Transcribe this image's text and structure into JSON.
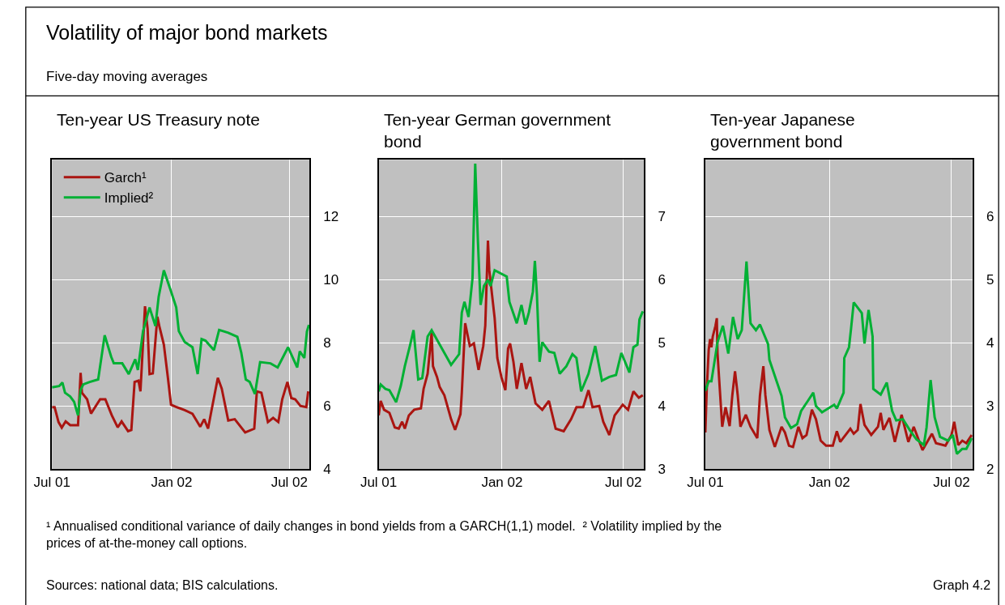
{
  "chart_data": [
    {
      "type": "other",
      "title": "Volatility of major bond markets",
      "subtitle": "Five-day moving averages"
    },
    {
      "type": "line",
      "title": "Ten-year US Treasury note",
      "xlim": [
        "2001-07-01",
        "2002-08-01"
      ],
      "xticks": [
        {
          "value": "2001-07-01",
          "label": "Jul 01"
        },
        {
          "value": "2002-01-01",
          "label": "Jan 02"
        },
        {
          "value": "2002-07-01",
          "label": "Jul 02"
        }
      ],
      "ylim": [
        4,
        13.8
      ],
      "yticks": [
        4,
        6,
        8,
        10,
        12
      ],
      "grid": true,
      "legend": "top left",
      "series": [
        {
          "name": "Garch¹",
          "color": "#aa1511",
          "x": [
            "2001-07-01",
            "2001-07-05",
            "2001-07-11",
            "2001-07-16",
            "2001-07-22",
            "2001-07-29",
            "2001-08-10",
            "2001-08-14",
            "2001-08-16",
            "2001-08-24",
            "2001-08-30",
            "2001-09-13",
            "2001-09-21",
            "2001-10-01",
            "2001-10-10",
            "2001-10-16",
            "2001-10-26",
            "2001-10-31",
            "2001-11-05",
            "2001-11-11",
            "2001-11-14",
            "2001-11-21",
            "2001-11-25",
            "2001-11-28",
            "2001-12-03",
            "2001-12-10",
            "2001-12-13",
            "2001-12-20",
            "2001-12-26",
            "2001-12-31",
            "2002-01-09",
            "2002-01-21",
            "2002-02-02",
            "2002-02-14",
            "2002-02-20",
            "2002-02-26",
            "2002-03-03",
            "2002-03-13",
            "2002-03-19",
            "2002-03-29",
            "2002-04-08",
            "2002-04-24",
            "2002-05-08",
            "2002-05-12",
            "2002-05-19",
            "2002-05-29",
            "2002-06-06",
            "2002-06-14",
            "2002-06-20",
            "2002-06-28",
            "2002-07-04",
            "2002-07-10",
            "2002-07-18",
            "2002-07-27",
            "2002-07-30"
          ],
          "values": [
            5.96,
            5.96,
            5.49,
            5.31,
            5.51,
            5.39,
            5.39,
            7.05,
            6.42,
            6.21,
            5.76,
            6.21,
            6.21,
            5.7,
            5.32,
            5.51,
            5.2,
            5.24,
            6.76,
            6.8,
            6.46,
            9.16,
            8.45,
            7.01,
            7.03,
            8.83,
            8.53,
            7.94,
            6.93,
            6.04,
            5.96,
            5.87,
            5.75,
            5.34,
            5.58,
            5.28,
            5.83,
            6.89,
            6.55,
            5.54,
            5.58,
            5.16,
            5.28,
            6.46,
            6.42,
            5.49,
            5.62,
            5.49,
            6.21,
            6.76,
            6.25,
            6.21,
            6.0,
            5.96,
            6.46
          ]
        },
        {
          "name": "Implied²",
          "color": "#00b034",
          "x": [
            "2001-07-01",
            "2001-07-12",
            "2001-07-17",
            "2001-07-21",
            "2001-07-29",
            "2001-08-04",
            "2001-08-10",
            "2001-08-14",
            "2001-08-18",
            "2001-08-28",
            "2001-09-10",
            "2001-09-20",
            "2001-09-30",
            "2001-10-04",
            "2001-10-17",
            "2001-10-27",
            "2001-11-06",
            "2001-11-10",
            "2001-11-18",
            "2001-11-28",
            "2001-12-07",
            "2001-12-12",
            "2001-12-20",
            "2001-12-31",
            "2002-01-08",
            "2002-01-12",
            "2002-01-21",
            "2002-02-02",
            "2002-02-10",
            "2002-02-16",
            "2002-02-22",
            "2002-03-07",
            "2002-03-15",
            "2002-03-29",
            "2002-04-12",
            "2002-04-18",
            "2002-04-25",
            "2002-05-01",
            "2002-05-09",
            "2002-05-17",
            "2002-06-02",
            "2002-06-13",
            "2002-06-29",
            "2002-07-13",
            "2002-07-17",
            "2002-07-24",
            "2002-07-28",
            "2002-07-31"
          ],
          "values": [
            6.59,
            6.63,
            6.74,
            6.42,
            6.3,
            6.13,
            5.7,
            6.51,
            6.68,
            6.76,
            6.84,
            8.24,
            7.56,
            7.35,
            7.35,
            7.01,
            7.48,
            7.14,
            8.37,
            9.12,
            8.53,
            9.46,
            10.3,
            9.63,
            9.12,
            8.37,
            8.03,
            7.86,
            7.01,
            8.12,
            8.07,
            7.77,
            8.41,
            8.32,
            8.19,
            7.69,
            6.84,
            6.76,
            6.38,
            7.39,
            7.35,
            7.22,
            7.86,
            7.22,
            7.73,
            7.52,
            8.36,
            8.57
          ]
        }
      ]
    },
    {
      "type": "line",
      "title": "Ten-year German government bond",
      "xlim": [
        "2001-07-01",
        "2002-08-01"
      ],
      "xticks": [
        {
          "value": "2001-07-01",
          "label": "Jul 01"
        },
        {
          "value": "2002-01-01",
          "label": "Jan 02"
        },
        {
          "value": "2002-07-01",
          "label": "Jul 02"
        }
      ],
      "ylim": [
        3,
        7.9
      ],
      "yticks": [
        3,
        4,
        5,
        6,
        7
      ],
      "grid": true,
      "series": [
        {
          "color": "#aa1511",
          "x": [
            "2001-07-01",
            "2001-07-04",
            "2001-07-09",
            "2001-07-17",
            "2001-07-25",
            "2001-07-31",
            "2001-08-05",
            "2001-08-09",
            "2001-08-15",
            "2001-08-23",
            "2001-09-02",
            "2001-09-06",
            "2001-09-12",
            "2001-09-18",
            "2001-09-20",
            "2001-09-26",
            "2001-09-30",
            "2001-10-07",
            "2001-10-17",
            "2001-10-23",
            "2001-10-31",
            "2001-11-02",
            "2001-11-07",
            "2001-11-14",
            "2001-11-20",
            "2001-11-27",
            "2001-12-04",
            "2001-12-07",
            "2001-12-11",
            "2001-12-13",
            "2001-12-21",
            "2001-12-25",
            "2001-12-31",
            "2002-01-06",
            "2002-01-10",
            "2002-01-13",
            "2002-01-18",
            "2002-01-23",
            "2002-01-30",
            "2002-02-06",
            "2002-02-12",
            "2002-02-20",
            "2002-03-02",
            "2002-03-12",
            "2002-03-22",
            "2002-04-03",
            "2002-04-14",
            "2002-04-22",
            "2002-05-02",
            "2002-05-10",
            "2002-05-16",
            "2002-05-26",
            "2002-06-01",
            "2002-06-10",
            "2002-06-18",
            "2002-06-30",
            "2002-07-08",
            "2002-07-16",
            "2002-07-24",
            "2002-07-30"
          ],
          "values": [
            3.85,
            4.08,
            3.94,
            3.89,
            3.66,
            3.64,
            3.75,
            3.64,
            3.85,
            3.94,
            3.96,
            4.27,
            4.51,
            5.16,
            4.63,
            4.46,
            4.3,
            4.17,
            3.79,
            3.62,
            3.87,
            4.21,
            5.31,
            4.95,
            4.99,
            4.57,
            4.95,
            5.27,
            6.62,
            6.15,
            5.39,
            4.76,
            4.46,
            4.25,
            4.91,
            4.99,
            4.7,
            4.27,
            4.68,
            4.27,
            4.46,
            4.04,
            3.94,
            4.08,
            3.64,
            3.6,
            3.79,
            3.98,
            3.98,
            4.25,
            3.98,
            4.0,
            3.75,
            3.54,
            3.85,
            4.02,
            3.94,
            4.23,
            4.13,
            4.17
          ]
        },
        {
          "color": "#00b034",
          "x": [
            "2001-07-01",
            "2001-07-04",
            "2001-07-11",
            "2001-07-17",
            "2001-07-27",
            "2001-08-03",
            "2001-08-09",
            "2001-08-17",
            "2001-08-22",
            "2001-08-29",
            "2001-09-04",
            "2001-09-12",
            "2001-09-18",
            "2001-09-26",
            "2001-10-17",
            "2001-10-29",
            "2001-11-02",
            "2001-11-06",
            "2001-11-12",
            "2001-11-18",
            "2001-11-22",
            "2001-11-26",
            "2001-11-30",
            "2001-12-05",
            "2001-12-11",
            "2001-12-15",
            "2001-12-21",
            "2002-01-08",
            "2002-01-12",
            "2002-01-23",
            "2002-01-30",
            "2002-02-05",
            "2002-02-10",
            "2002-02-16",
            "2002-02-19",
            "2002-02-22",
            "2002-02-26",
            "2002-03-02",
            "2002-03-12",
            "2002-03-20",
            "2002-03-28",
            "2002-04-07",
            "2002-04-16",
            "2002-04-22",
            "2002-04-29",
            "2002-05-10",
            "2002-05-20",
            "2002-05-30",
            "2002-06-10",
            "2002-06-20",
            "2002-06-28",
            "2002-07-10",
            "2002-07-16",
            "2002-07-22",
            "2002-07-25",
            "2002-07-30"
          ],
          "values": [
            4.23,
            4.34,
            4.27,
            4.25,
            4.06,
            4.32,
            4.63,
            4.97,
            5.2,
            4.42,
            4.44,
            5.1,
            5.2,
            5.05,
            4.65,
            4.82,
            5.48,
            5.65,
            5.41,
            6.03,
            7.84,
            6.62,
            5.6,
            5.9,
            6.0,
            5.9,
            6.15,
            6.05,
            5.65,
            5.31,
            5.6,
            5.29,
            5.48,
            5.81,
            6.3,
            5.77,
            4.7,
            5.01,
            4.86,
            4.84,
            4.51,
            4.63,
            4.82,
            4.76,
            4.23,
            4.51,
            4.95,
            4.4,
            4.46,
            4.49,
            4.84,
            4.53,
            4.93,
            4.97,
            5.37,
            5.5
          ]
        }
      ]
    },
    {
      "type": "line",
      "title": "Ten-year Japanese government bond",
      "xlim": [
        "2001-07-01",
        "2002-08-01"
      ],
      "xticks": [
        {
          "value": "2001-07-01",
          "label": "Jul 01"
        },
        {
          "value": "2002-01-01",
          "label": "Jan 02"
        },
        {
          "value": "2002-07-01",
          "label": "Jul 02"
        }
      ],
      "ylim": [
        2,
        6.9
      ],
      "yticks": [
        2,
        3,
        4,
        5,
        6
      ],
      "grid": true,
      "series": [
        {
          "color": "#aa1511",
          "x": [
            "2001-07-01",
            "2001-07-03",
            "2001-07-06",
            "2001-07-08",
            "2001-07-10",
            "2001-07-12",
            "2001-07-16",
            "2001-07-18",
            "2001-07-19",
            "2001-07-23",
            "2001-07-26",
            "2001-07-31",
            "2001-08-06",
            "2001-08-10",
            "2001-08-14",
            "2001-08-18",
            "2001-08-22",
            "2001-08-30",
            "2001-09-06",
            "2001-09-16",
            "2001-09-20",
            "2001-09-25",
            "2001-09-28",
            "2001-10-04",
            "2001-10-12",
            "2001-10-22",
            "2001-10-27",
            "2001-11-02",
            "2001-11-08",
            "2001-11-16",
            "2001-11-22",
            "2001-11-28",
            "2001-12-06",
            "2001-12-12",
            "2001-12-19",
            "2001-12-27",
            "2002-01-06",
            "2002-01-12",
            "2002-01-17",
            "2002-02-01",
            "2002-02-06",
            "2002-02-12",
            "2002-02-16",
            "2002-02-22",
            "2002-03-04",
            "2002-03-14",
            "2002-03-18",
            "2002-03-22",
            "2002-03-31",
            "2002-04-08",
            "2002-04-18",
            "2002-04-28",
            "2002-05-06",
            "2002-05-19",
            "2002-06-02",
            "2002-06-08",
            "2002-06-22",
            "2002-07-01",
            "2002-07-05",
            "2002-07-11",
            "2002-07-17",
            "2002-07-23",
            "2002-07-31"
          ],
          "values": [
            2.58,
            3.25,
            3.89,
            4.06,
            3.93,
            4.1,
            4.27,
            4.39,
            3.84,
            3.17,
            2.67,
            2.98,
            2.68,
            3.17,
            3.55,
            3.17,
            2.67,
            2.86,
            2.67,
            2.49,
            3.17,
            3.63,
            3.17,
            2.62,
            2.35,
            2.67,
            2.58,
            2.37,
            2.35,
            2.67,
            2.49,
            2.54,
            2.94,
            2.79,
            2.45,
            2.37,
            2.37,
            2.6,
            2.43,
            2.64,
            2.56,
            2.62,
            3.03,
            2.7,
            2.54,
            2.67,
            2.89,
            2.62,
            2.81,
            2.43,
            2.86,
            2.43,
            2.67,
            2.3,
            2.56,
            2.41,
            2.37,
            2.54,
            2.75,
            2.38,
            2.45,
            2.41,
            2.54
          ]
        },
        {
          "color": "#00b034",
          "x": [
            "2001-07-01",
            "2001-07-06",
            "2001-07-10",
            "2001-07-16",
            "2001-07-19",
            "2001-07-27",
            "2001-08-04",
            "2001-08-11",
            "2001-08-18",
            "2001-08-24",
            "2001-08-31",
            "2001-09-06",
            "2001-09-14",
            "2001-09-20",
            "2001-10-02",
            "2001-10-04",
            "2001-10-22",
            "2001-10-27",
            "2001-11-05",
            "2001-11-14",
            "2001-11-20",
            "2001-11-30",
            "2001-12-08",
            "2001-12-12",
            "2001-12-21",
            "2002-01-08",
            "2002-01-12",
            "2002-01-22",
            "2002-01-23",
            "2002-01-30",
            "2002-02-02",
            "2002-02-06",
            "2002-02-18",
            "2002-02-22",
            "2002-02-28",
            "2002-03-06",
            "2002-03-07",
            "2002-03-18",
            "2002-03-27",
            "2002-04-04",
            "2002-04-10",
            "2002-04-20",
            "2002-04-30",
            "2002-05-10",
            "2002-05-21",
            "2002-05-25",
            "2002-05-31",
            "2002-06-06",
            "2002-06-14",
            "2002-06-26",
            "2002-07-03",
            "2002-07-09",
            "2002-07-17",
            "2002-07-23",
            "2002-07-31"
          ],
          "values": [
            3.24,
            3.39,
            3.39,
            3.8,
            4.01,
            4.27,
            3.83,
            4.41,
            4.06,
            4.2,
            5.29,
            4.31,
            4.2,
            4.29,
            3.98,
            3.73,
            3.16,
            2.82,
            2.65,
            2.71,
            2.92,
            3.08,
            3.21,
            3.0,
            2.9,
            3.02,
            2.96,
            3.21,
            3.76,
            3.93,
            4.22,
            4.64,
            4.47,
            3.99,
            4.52,
            4.1,
            3.27,
            3.18,
            3.37,
            2.92,
            2.77,
            2.79,
            2.62,
            2.47,
            2.38,
            2.66,
            3.41,
            2.82,
            2.51,
            2.45,
            2.54,
            2.24,
            2.32,
            2.32,
            2.49
          ]
        }
      ]
    },
    {
      "type": "other",
      "annotations": [
        "¹ Annualised conditional variance of daily changes in bond yields from a GARCH(1,1) model.  ² Volatility implied by the prices of at-the-money call options.",
        "Sources: national data; BIS calculations.",
        "Graph 4.2"
      ]
    }
  ]
}
